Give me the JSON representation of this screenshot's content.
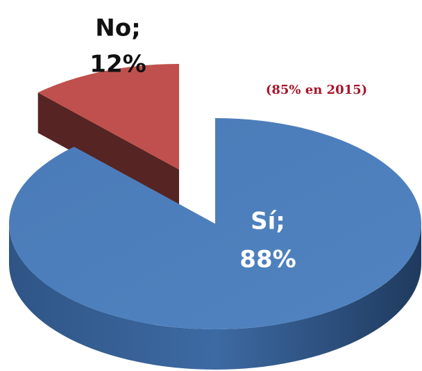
{
  "chart_data": {
    "type": "pie",
    "three_d": true,
    "categories": [
      "Sí;",
      "No;"
    ],
    "values": [
      88,
      12
    ],
    "value_labels": [
      "88%",
      "12%"
    ],
    "colors": [
      "#4f81bd",
      "#c0504d"
    ],
    "annotation": "(85% en 2015)"
  }
}
